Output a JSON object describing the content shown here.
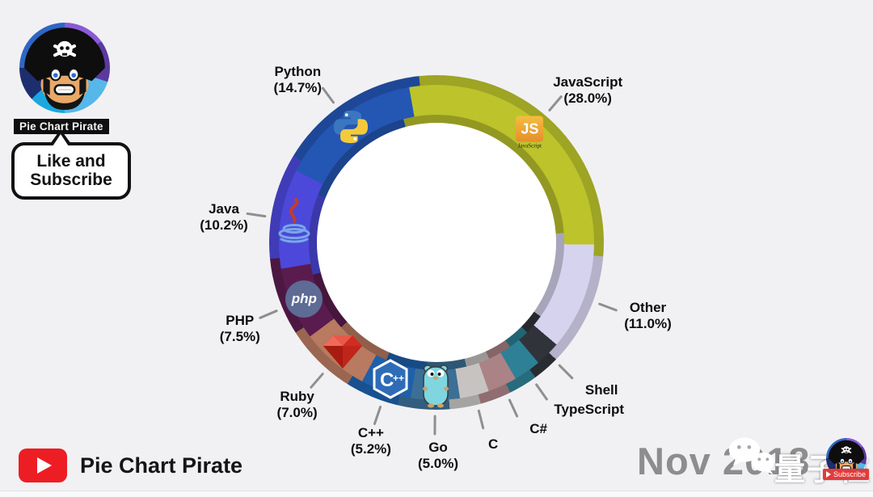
{
  "chart_data": {
    "type": "pie",
    "subtype": "donut",
    "unit": "%",
    "direction": "clockwise",
    "start_angle_deg": -10,
    "legend": "none (labels around donut)",
    "slices": [
      {
        "name": "JavaScript",
        "value": 28.0,
        "pct_label": "(28.0%)",
        "color": "#bcc32b",
        "icon": "javascript-icon",
        "icon_text": "JS",
        "icon_caption": "JavaScript"
      },
      {
        "name": "Other",
        "value": 11.0,
        "pct_label": "(11.0%)",
        "color": "#d6d3ef"
      },
      {
        "name": "Shell",
        "value": 2.6,
        "pct_label": "",
        "value_estimated": true,
        "color": "#30343a"
      },
      {
        "name": "TypeScript",
        "value": 2.8,
        "pct_label": "",
        "value_estimated": true,
        "color": "#2d8095"
      },
      {
        "name": "C#",
        "value": 3.0,
        "pct_label": "",
        "value_estimated": true,
        "color": "#ab8285"
      },
      {
        "name": "C",
        "value": 3.0,
        "pct_label": "",
        "value_estimated": true,
        "color": "#c6c3c1"
      },
      {
        "name": "Go",
        "value": 5.0,
        "pct_label": "(5.0%)",
        "color": "#3b6f96",
        "icon": "go-gopher-icon"
      },
      {
        "name": "C++",
        "value": 5.2,
        "pct_label": "(5.2%)",
        "color": "#1d60ab",
        "icon": "cpp-icon",
        "icon_text": "C++"
      },
      {
        "name": "Ruby",
        "value": 7.0,
        "pct_label": "(7.0%)",
        "color": "#b87a60",
        "icon": "ruby-icon"
      },
      {
        "name": "PHP",
        "value": 7.5,
        "pct_label": "(7.5%)",
        "color": "#5a1c4e",
        "icon": "php-icon",
        "icon_text": "php"
      },
      {
        "name": "Java",
        "value": 10.2,
        "pct_label": "(10.2%)",
        "color": "#4c48da",
        "icon": "java-icon"
      },
      {
        "name": "Python",
        "value": 14.7,
        "pct_label": "(14.7%)",
        "color": "#2456b4",
        "icon": "python-icon"
      }
    ]
  },
  "channel": {
    "badge": "Pie Chart Pirate",
    "bubble_line1": "Like and",
    "bubble_line2": "Subscribe"
  },
  "footer": {
    "brand": "Pie Chart Pirate",
    "date": "Nov 2018"
  },
  "watermark": {
    "text": "量子位",
    "subscribe_label": "Subscribe"
  },
  "colors": {
    "background": "#f1f1f3",
    "label_text": "#0d0d0d",
    "tick": "#8f8f90",
    "date_text": "#8d8d90",
    "youtube_red": "#ed1d24",
    "subscribe_red": "#e23b3b",
    "hole": "#ffffff"
  }
}
